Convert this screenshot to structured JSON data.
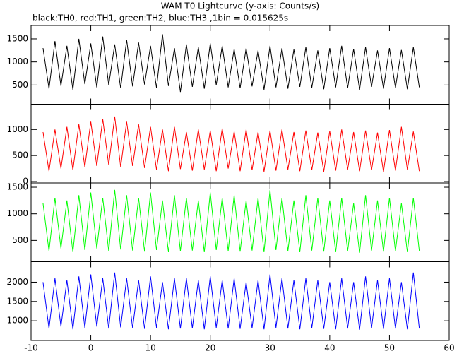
{
  "chart_data": [
    {
      "type": "line",
      "title": "WAM T0 Lightcurve (y-axis: Counts/s)",
      "subtitle": "black:TH0, red:TH1, green:TH2, blue:TH3 ,1bin = 0.015625s",
      "x": [
        -8,
        -7,
        -6,
        -5,
        -4,
        -3,
        -2,
        -1,
        0,
        1,
        2,
        3,
        4,
        5,
        6,
        7,
        8,
        9,
        10,
        11,
        12,
        13,
        14,
        15,
        16,
        17,
        18,
        19,
        20,
        21,
        22,
        23,
        24,
        25,
        26,
        27,
        28,
        29,
        30,
        31,
        32,
        33,
        34,
        35,
        36,
        37,
        38,
        39,
        40,
        41,
        42,
        43,
        44,
        45,
        46,
        47,
        48,
        49,
        50,
        51,
        52,
        53,
        54,
        55
      ],
      "series": [
        {
          "name": "TH0",
          "color": "#000000",
          "values": [
            1300,
            420,
            1450,
            480,
            1350,
            400,
            1500,
            520,
            1400,
            450,
            1550,
            500,
            1380,
            430,
            1480,
            470,
            1420,
            510,
            1350,
            440,
            1600,
            480,
            1300,
            350,
            1380,
            460,
            1320,
            420,
            1400,
            500,
            1350,
            450,
            1280,
            430,
            1300,
            470,
            1250,
            400,
            1350,
            450,
            1300,
            420,
            1270,
            460,
            1320,
            440,
            1250,
            410,
            1300,
            450,
            1350,
            430,
            1280,
            400,
            1320,
            460,
            1250,
            420,
            1300,
            440,
            1260,
            410,
            1320,
            450
          ]
        }
      ],
      "xlim": [
        -10,
        60
      ],
      "xticks": [
        -10,
        0,
        10,
        20,
        30,
        40,
        50,
        60
      ],
      "ylim": [
        85,
        1790
      ],
      "yticks": [
        500,
        1000,
        1500
      ]
    },
    {
      "type": "line",
      "x": [
        -8,
        -7,
        -6,
        -5,
        -4,
        -3,
        -2,
        -1,
        0,
        1,
        2,
        3,
        4,
        5,
        6,
        7,
        8,
        9,
        10,
        11,
        12,
        13,
        14,
        15,
        16,
        17,
        18,
        19,
        20,
        21,
        22,
        23,
        24,
        25,
        26,
        27,
        28,
        29,
        30,
        31,
        32,
        33,
        34,
        35,
        36,
        37,
        38,
        39,
        40,
        41,
        42,
        43,
        44,
        45,
        46,
        47,
        48,
        49,
        50,
        51,
        52,
        53,
        54,
        55
      ],
      "series": [
        {
          "name": "TH1",
          "color": "#ff0000",
          "values": [
            950,
            200,
            1000,
            250,
            1050,
            220,
            1100,
            280,
            1150,
            300,
            1200,
            320,
            1250,
            280,
            1150,
            300,
            1100,
            260,
            1050,
            230,
            1000,
            200,
            1050,
            240,
            950,
            210,
            1000,
            230,
            980,
            200,
            1020,
            250,
            960,
            200,
            1000,
            220,
            950,
            190,
            980,
            210,
            1000,
            230,
            950,
            200,
            980,
            220,
            940,
            190,
            970,
            210,
            1000,
            230,
            950,
            200,
            980,
            220,
            940,
            190,
            990,
            210,
            1050,
            230,
            960,
            200
          ]
        }
      ],
      "xlim": [
        -10,
        60
      ],
      "xticks": [
        -10,
        0,
        10,
        20,
        30,
        40,
        50,
        60
      ],
      "ylim": [
        -27,
        1486
      ],
      "yticks": [
        0,
        500,
        1000
      ]
    },
    {
      "type": "line",
      "x": [
        -8,
        -7,
        -6,
        -5,
        -4,
        -3,
        -2,
        -1,
        0,
        1,
        2,
        3,
        4,
        5,
        6,
        7,
        8,
        9,
        10,
        11,
        12,
        13,
        14,
        15,
        16,
        17,
        18,
        19,
        20,
        21,
        22,
        23,
        24,
        25,
        26,
        27,
        28,
        29,
        30,
        31,
        32,
        33,
        34,
        35,
        36,
        37,
        38,
        39,
        40,
        41,
        42,
        43,
        44,
        45,
        46,
        47,
        48,
        49,
        50,
        51,
        52,
        53,
        54,
        55
      ],
      "series": [
        {
          "name": "TH2",
          "color": "#00ff00",
          "values": [
            1200,
            300,
            1300,
            350,
            1250,
            280,
            1350,
            320,
            1400,
            350,
            1300,
            300,
            1450,
            330,
            1350,
            310,
            1300,
            290,
            1400,
            320,
            1250,
            280,
            1350,
            300,
            1300,
            310,
            1250,
            280,
            1400,
            320,
            1300,
            300,
            1350,
            290,
            1250,
            310,
            1300,
            280,
            1450,
            320,
            1300,
            300,
            1250,
            280,
            1350,
            310,
            1300,
            290,
            1250,
            280,
            1300,
            300,
            1200,
            270,
            1350,
            310,
            1250,
            290,
            1300,
            300,
            1200,
            280,
            1300,
            300
          ]
        }
      ],
      "xlim": [
        -10,
        60
      ],
      "xticks": [
        -10,
        0,
        10,
        20,
        30,
        40,
        50,
        60
      ],
      "ylim": [
        100,
        1580
      ],
      "yticks": [
        500,
        1000,
        1500
      ]
    },
    {
      "type": "line",
      "x": [
        -8,
        -7,
        -6,
        -5,
        -4,
        -3,
        -2,
        -1,
        0,
        1,
        2,
        3,
        4,
        5,
        6,
        7,
        8,
        9,
        10,
        11,
        12,
        13,
        14,
        15,
        16,
        17,
        18,
        19,
        20,
        21,
        22,
        23,
        24,
        25,
        26,
        27,
        28,
        29,
        30,
        31,
        32,
        33,
        34,
        35,
        36,
        37,
        38,
        39,
        40,
        41,
        42,
        43,
        44,
        45,
        46,
        47,
        48,
        49,
        50,
        51,
        52,
        53,
        54,
        55
      ],
      "series": [
        {
          "name": "TH3",
          "color": "#0000ff",
          "values": [
            2000,
            800,
            2100,
            850,
            2050,
            780,
            2150,
            820,
            2200,
            850,
            2100,
            800,
            2250,
            830,
            2100,
            810,
            2050,
            790,
            2150,
            820,
            2000,
            780,
            2100,
            800,
            2100,
            810,
            2050,
            780,
            2150,
            820,
            2050,
            800,
            2100,
            790,
            2000,
            810,
            2050,
            780,
            2200,
            820,
            2100,
            800,
            2050,
            780,
            2100,
            810,
            2050,
            790,
            2000,
            780,
            2100,
            800,
            2000,
            770,
            2150,
            810,
            2050,
            790,
            2100,
            800,
            2000,
            780,
            2250,
            800
          ]
        }
      ],
      "xlim": [
        -10,
        60
      ],
      "xticks": [
        -10,
        0,
        10,
        20,
        30,
        40,
        50,
        60
      ],
      "ylim": [
        490,
        2530
      ],
      "yticks": [
        1000,
        1500,
        2000
      ]
    }
  ]
}
